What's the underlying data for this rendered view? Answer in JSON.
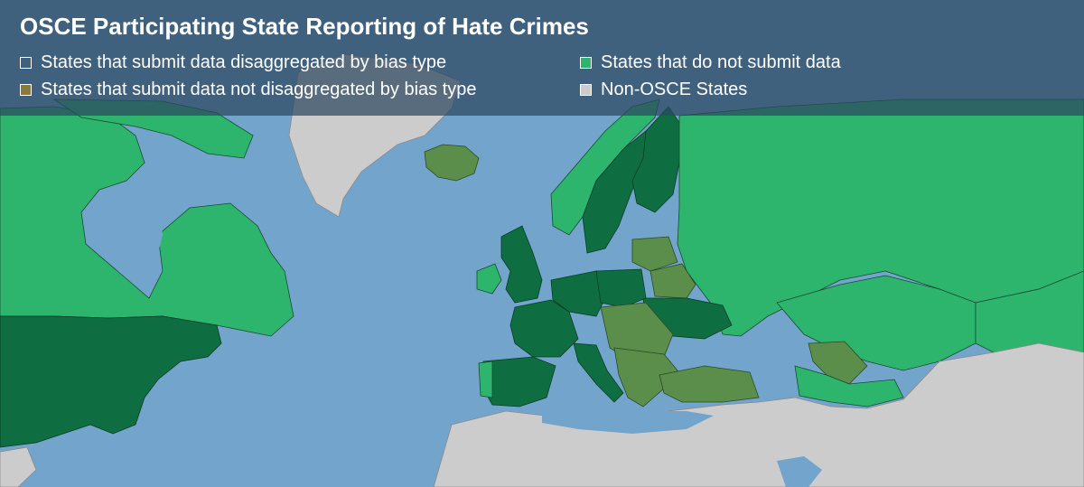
{
  "title": "OSCE Participating State Reporting of Hate Crimes",
  "legend": [
    {
      "label": "States that submit data disaggregated by bias type",
      "color": "#ffffff",
      "fill": "transparent"
    },
    {
      "label": "States that submit data not disaggregated by bias type",
      "color": "#8b7a3e",
      "fill": "#8b7a3e"
    },
    {
      "label": "States that do not submit data",
      "color": "#2db56e",
      "fill": "#2db56e"
    },
    {
      "label": "Non-OSCE States",
      "color": "#cccccc",
      "fill": "#cccccc"
    }
  ],
  "colors": {
    "ocean": "#73a5cc",
    "disaggregated": "#0e6e41",
    "not_disaggregated": "#5b8e4a",
    "no_data": "#2db56e",
    "non_osce": "#cccccc"
  }
}
